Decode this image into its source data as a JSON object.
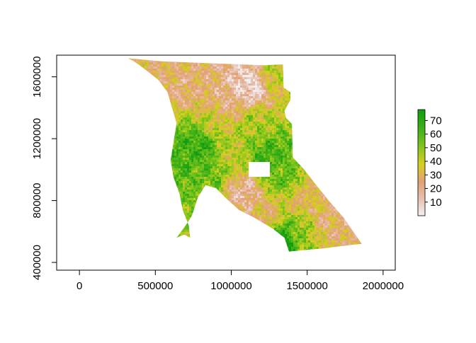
{
  "chart_data": {
    "type": "heatmap",
    "title": "",
    "xlabel": "",
    "ylabel": "",
    "xlim": [
      -150000,
      2080000
    ],
    "ylim": [
      350000,
      1740000
    ],
    "x_ticks": [
      0,
      500000,
      1000000,
      1500000,
      2000000
    ],
    "x_tick_labels": [
      "0",
      "500000",
      "1000000",
      "1500000",
      "2000000"
    ],
    "y_ticks": [
      400000,
      800000,
      1200000,
      1600000
    ],
    "y_tick_labels": [
      "400000",
      "800000",
      "1200000",
      "1600000"
    ],
    "legend": {
      "placement": "right",
      "range": [
        0,
        78
      ],
      "ticks": [
        10,
        20,
        30,
        40,
        50,
        60,
        70
      ],
      "tick_labels": [
        "10",
        "20",
        "30",
        "40",
        "50",
        "60",
        "70"
      ],
      "color_stops": [
        {
          "value": 0,
          "color": "#f2f2f2"
        },
        {
          "value": 12,
          "color": "#e8c2b4"
        },
        {
          "value": 25,
          "color": "#e3a072"
        },
        {
          "value": 38,
          "color": "#d6cf1f"
        },
        {
          "value": 52,
          "color": "#7ac31c"
        },
        {
          "value": 65,
          "color": "#3aae17"
        },
        {
          "value": 78,
          "color": "#119c10"
        }
      ]
    },
    "region_outline": [
      [
        320000,
        1720000
      ],
      [
        540000,
        1700000
      ],
      [
        1200000,
        1675000
      ],
      [
        1340000,
        1680000
      ],
      [
        1345000,
        1530000
      ],
      [
        1390000,
        1500000
      ],
      [
        1390000,
        1450000
      ],
      [
        1350000,
        1380000
      ],
      [
        1360000,
        1335000
      ],
      [
        1400000,
        1295000
      ],
      [
        1405000,
        1080000
      ],
      [
        1480000,
        1000000
      ],
      [
        1560000,
        900000
      ],
      [
        1650000,
        790000
      ],
      [
        1740000,
        690000
      ],
      [
        1810000,
        590000
      ],
      [
        1860000,
        520000
      ],
      [
        1760000,
        510000
      ],
      [
        1600000,
        490000
      ],
      [
        1480000,
        480000
      ],
      [
        1380000,
        470000
      ],
      [
        1350000,
        560000
      ],
      [
        1270000,
        620000
      ],
      [
        1150000,
        690000
      ],
      [
        1050000,
        740000
      ],
      [
        960000,
        820000
      ],
      [
        900000,
        880000
      ],
      [
        830000,
        900000
      ],
      [
        780000,
        820000
      ],
      [
        740000,
        700000
      ],
      [
        700000,
        640000
      ],
      [
        640000,
        560000
      ],
      [
        690000,
        580000
      ],
      [
        730000,
        560000
      ],
      [
        720000,
        640000
      ],
      [
        680000,
        740000
      ],
      [
        660000,
        840000
      ],
      [
        620000,
        950000
      ],
      [
        600000,
        1060000
      ],
      [
        620000,
        1180000
      ],
      [
        640000,
        1300000
      ],
      [
        610000,
        1400000
      ],
      [
        580000,
        1500000
      ],
      [
        520000,
        1580000
      ],
      [
        430000,
        1650000
      ],
      [
        360000,
        1700000
      ]
    ],
    "cutouts": [
      {
        "x": [
          1110000,
          1250000
        ],
        "y": [
          960000,
          1050000
        ]
      }
    ],
    "zones": [
      {
        "x": 800000,
        "y": 1150000,
        "value": 66
      },
      {
        "x": 770000,
        "y": 1050000,
        "value": 60
      },
      {
        "x": 840000,
        "y": 950000,
        "value": 55
      },
      {
        "x": 1230000,
        "y": 1100000,
        "value": 62
      },
      {
        "x": 1320000,
        "y": 960000,
        "value": 55
      },
      {
        "x": 1360000,
        "y": 560000,
        "value": 70
      },
      {
        "x": 1220000,
        "y": 700000,
        "value": 30
      },
      {
        "x": 1080000,
        "y": 850000,
        "value": 18
      },
      {
        "x": 980000,
        "y": 1430000,
        "value": 22
      },
      {
        "x": 1120000,
        "y": 1540000,
        "value": 8
      },
      {
        "x": 700000,
        "y": 1560000,
        "value": 24
      },
      {
        "x": 1500000,
        "y": 800000,
        "value": 30
      },
      {
        "x": 1650000,
        "y": 650000,
        "value": 25
      },
      {
        "x": 1160000,
        "y": 1280000,
        "value": 45
      },
      {
        "x": 900000,
        "y": 1300000,
        "value": 38
      },
      {
        "x": 1300000,
        "y": 1620000,
        "value": 40
      },
      {
        "x": 600000,
        "y": 1680000,
        "value": 28
      },
      {
        "x": 1000000,
        "y": 1100000,
        "value": 42
      },
      {
        "x": 1450000,
        "y": 600000,
        "value": 48
      }
    ]
  }
}
